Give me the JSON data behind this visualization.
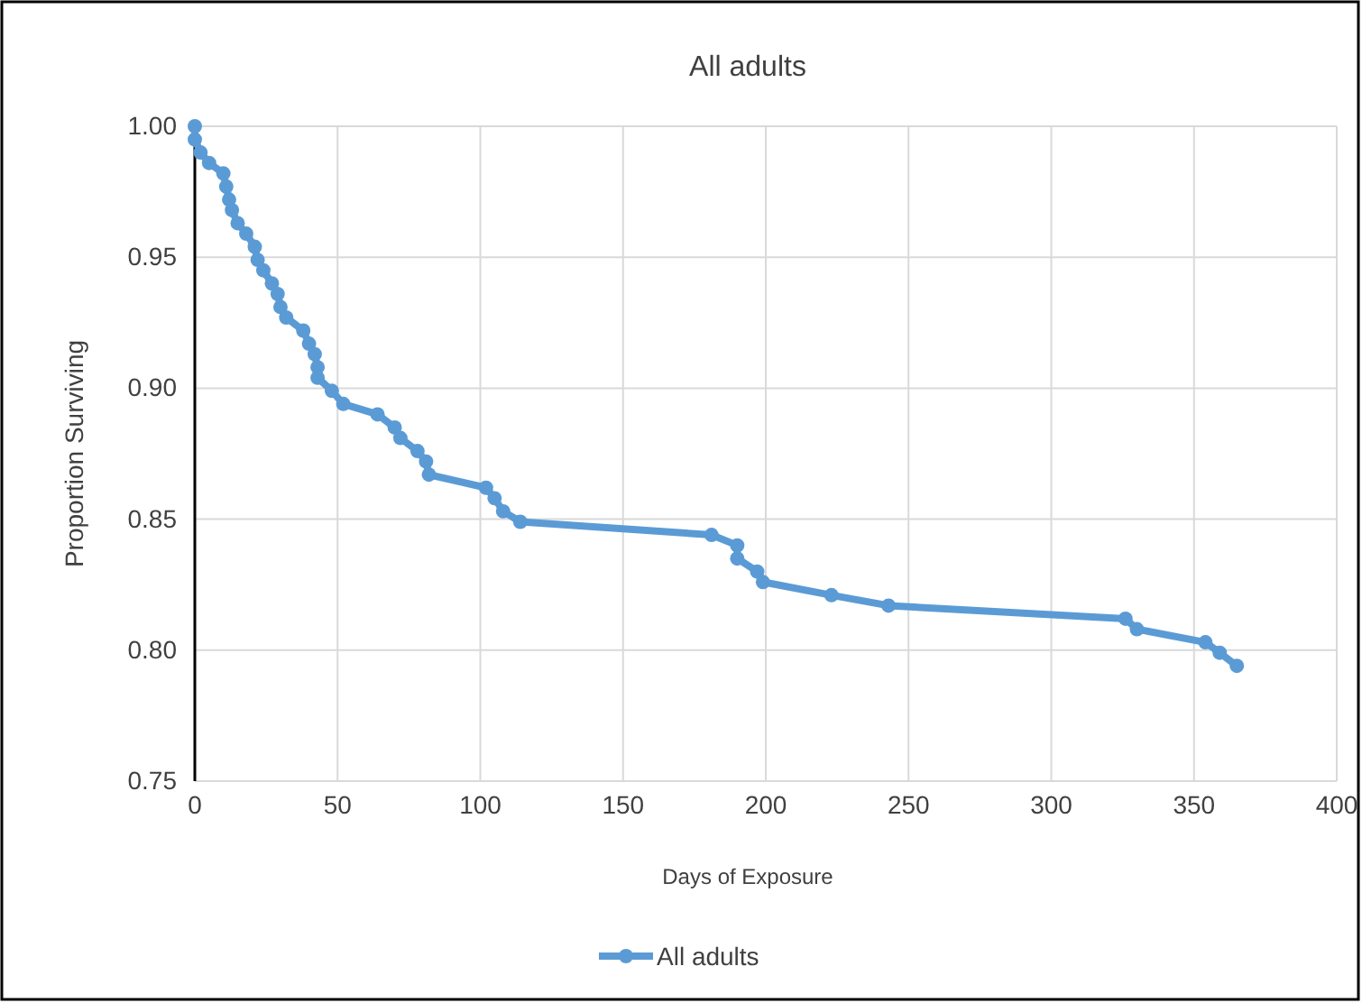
{
  "chart_data": {
    "type": "line",
    "title": "All adults",
    "xlabel": "Days of Exposure",
    "ylabel": "Proportion Surviving",
    "xlim": [
      0,
      400
    ],
    "xticks": [
      0,
      50,
      100,
      150,
      200,
      250,
      300,
      350,
      400
    ],
    "ylim": [
      0.75,
      1.0
    ],
    "yticks": [
      {
        "value": 0.75,
        "label": "0.75"
      },
      {
        "value": 0.8,
        "label": "0.80"
      },
      {
        "value": 0.85,
        "label": "0.85"
      },
      {
        "value": 0.9,
        "label": "0.90"
      },
      {
        "value": 0.95,
        "label": "0.95"
      },
      {
        "value": 1.0,
        "label": "1.00"
      }
    ],
    "grid": true,
    "legend": "bottom",
    "marker": "circle",
    "line_style": "solid",
    "series": [
      {
        "name": "All adults",
        "color": "#5b9bd5",
        "x": [
          0,
          0,
          2,
          5,
          10,
          11,
          12,
          13,
          15,
          18,
          21,
          22,
          24,
          27,
          29,
          30,
          32,
          38,
          40,
          42,
          43,
          43,
          48,
          52,
          64,
          70,
          72,
          78,
          81,
          82,
          102,
          105,
          108,
          114,
          181,
          190,
          190,
          197,
          199,
          223,
          243,
          326,
          330,
          354,
          359,
          365
        ],
        "values": [
          1.0,
          0.995,
          0.99,
          0.986,
          0.982,
          0.977,
          0.972,
          0.968,
          0.963,
          0.959,
          0.954,
          0.949,
          0.945,
          0.94,
          0.936,
          0.931,
          0.927,
          0.922,
          0.917,
          0.913,
          0.908,
          0.904,
          0.899,
          0.894,
          0.89,
          0.885,
          0.881,
          0.876,
          0.872,
          0.867,
          0.862,
          0.858,
          0.853,
          0.849,
          0.844,
          0.84,
          0.835,
          0.83,
          0.826,
          0.821,
          0.817,
          0.812,
          0.808,
          0.803,
          0.799,
          0.794
        ]
      }
    ]
  }
}
